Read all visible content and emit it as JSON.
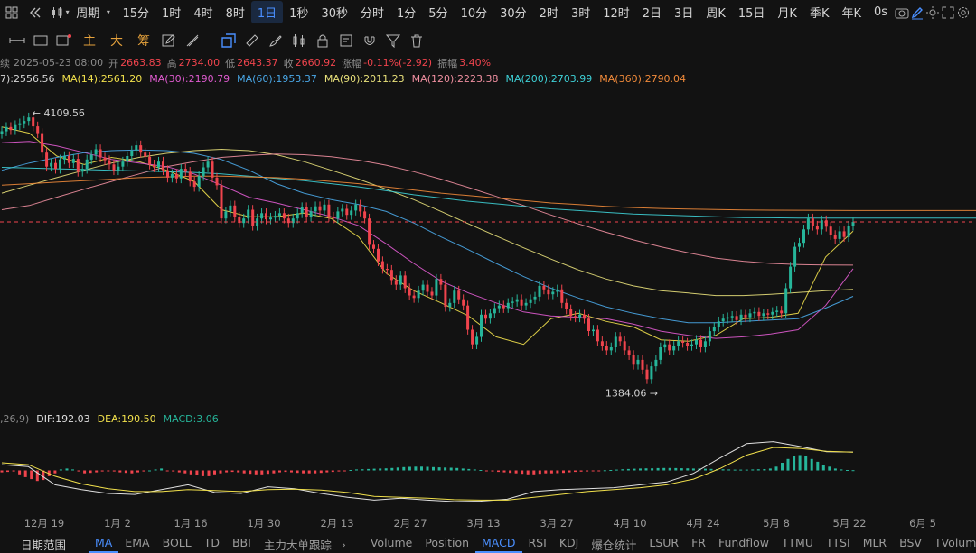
{
  "timebar": {
    "items": [
      "15分",
      "1时",
      "4时",
      "8时",
      "1日",
      "1秒",
      "30秒",
      "分时",
      "1分",
      "5分",
      "10分",
      "30分",
      "2时",
      "3时",
      "12时",
      "2日",
      "3日",
      "周K",
      "15日",
      "月K",
      "季K",
      "年K"
    ],
    "active_index": 4,
    "period_label": "周期",
    "countdown": "0s"
  },
  "toolbar": {
    "modes": [
      "主",
      "大",
      "筹"
    ]
  },
  "infobar": {
    "prefix": "续",
    "date": "2025-05-23 08:00",
    "open_label": "开",
    "open": "2663.83",
    "high_label": "高",
    "high": "2734.00",
    "low_label": "低",
    "low": "2643.37",
    "close_label": "收",
    "close": "2660.92",
    "change_label": "涨幅",
    "change": "-0.11%(-2.92)",
    "amp_label": "振幅",
    "amp": "3.40%"
  },
  "ma_legend": [
    {
      "text": "7):2556.56",
      "color": "#d8d8d8"
    },
    {
      "text": "MA(14):2561.20",
      "color": "#f1e04c"
    },
    {
      "text": "MA(30):2190.79",
      "color": "#e05bd0"
    },
    {
      "text": "MA(60):1953.37",
      "color": "#4aa8e8"
    },
    {
      "text": "MA(90):2011.23",
      "color": "#e8e07a"
    },
    {
      "text": "MA(120):2223.38",
      "color": "#f08fa0"
    },
    {
      "text": "MA(200):2703.99",
      "color": "#3ed0d6"
    },
    {
      "text": "MA(360):2790.04",
      "color": "#f08a3a"
    }
  ],
  "annotations": {
    "high": "4109.56",
    "low": "1384.06"
  },
  "macd_legend": {
    "params": ",26,9)",
    "dif": "DIF:192.03",
    "dea": "DEA:190.50",
    "macd": "MACD:3.06"
  },
  "x_labels": [
    "12月 19",
    "1月 2",
    "1月 16",
    "1月 30",
    "2月 13",
    "2月 27",
    "3月 13",
    "3月 27",
    "4月 10",
    "4月 24",
    "5月 8",
    "5月 22",
    "6月 5"
  ],
  "bottom": {
    "left": [
      "日期范围",
      "MA",
      "EMA",
      "BOLL",
      "TD",
      "BBI",
      "主力大单跟踪"
    ],
    "left_active": 1,
    "right": [
      "Volume",
      "Position",
      "MACD",
      "RSI",
      "KDJ",
      "爆仓统计",
      "LSUR",
      "FR",
      "Fundflow",
      "TTMU",
      "TTSI",
      "MLR",
      "BSV",
      "TVolume"
    ],
    "right_active": 2
  },
  "colors": {
    "up": "#26b59a",
    "down": "#f0444d",
    "accent": "#4a8fff",
    "bg": "#121212"
  },
  "chart_data": {
    "type": "candlestick",
    "x_unit": "day",
    "start_date": "2024-12-14",
    "y_axis": {
      "scale": "log",
      "min": 1300,
      "max": 4400
    },
    "closes": [
      3880,
      3950,
      3900,
      3980,
      4010,
      4050,
      4109.56,
      3960,
      3850,
      3550,
      3350,
      3400,
      3320,
      3450,
      3500,
      3400,
      3460,
      3280,
      3320,
      3450,
      3520,
      3600,
      3480,
      3440,
      3380,
      3300,
      3350,
      3420,
      3500,
      3580,
      3660,
      3550,
      3490,
      3380,
      3340,
      3420,
      3300,
      3200,
      3250,
      3190,
      3320,
      3280,
      3150,
      3080,
      3220,
      3340,
      3420,
      3200,
      3100,
      2700,
      2780,
      2850,
      2720,
      2650,
      2700,
      2800,
      2620,
      2700,
      2760,
      2690,
      2710,
      2730,
      2760,
      2700,
      2650,
      2700,
      2760,
      2830,
      2720,
      2780,
      2840,
      2790,
      2860,
      2720,
      2700,
      2780,
      2810,
      2740,
      2790,
      2860,
      2780,
      2700,
      2420,
      2380,
      2260,
      2190,
      2180,
      2090,
      2050,
      2130,
      2020,
      1960,
      1940,
      2000,
      2050,
      1990,
      1960,
      2100,
      2050,
      1870,
      1900,
      2000,
      1930,
      1880,
      1700,
      1600,
      1650,
      1810,
      1780,
      1820,
      1860,
      1880,
      1860,
      1900,
      1910,
      1930,
      1880,
      1900,
      1930,
      1950,
      2040,
      2010,
      1970,
      1990,
      2010,
      1900,
      1850,
      1800,
      1790,
      1810,
      1780,
      1690,
      1700,
      1620,
      1590,
      1560,
      1580,
      1650,
      1620,
      1560,
      1530,
      1470,
      1500,
      1440,
      1384.06,
      1460,
      1500,
      1580,
      1600,
      1560,
      1590,
      1620,
      1610,
      1590,
      1600,
      1630,
      1580,
      1620,
      1690,
      1720,
      1760,
      1780,
      1790,
      1800,
      1770,
      1810,
      1790,
      1820,
      1830,
      1800,
      1820,
      1810,
      1830,
      1840,
      1820,
      2020,
      2210,
      2400,
      2440,
      2580,
      2700,
      2620,
      2580,
      2680,
      2610,
      2520,
      2480,
      2560,
      2500,
      2620,
      2660.92
    ],
    "ma_series": [
      {
        "name": "MA(14)",
        "color": "#f1e04c",
        "y": [
          3950,
          3850,
          3500,
          3380,
          3480,
          3420,
          3300,
          3150,
          2800,
          2720,
          2720,
          2760,
          2700,
          2500,
          2150,
          2000,
          1900,
          1800,
          1650,
          1600,
          1780,
          1820,
          1760,
          1720,
          1630,
          1620,
          1660,
          1780,
          1790,
          1820,
          2300,
          2561.2
        ]
      },
      {
        "name": "MA(30)",
        "color": "#e05bd0",
        "y": [
          3700,
          3720,
          3650,
          3550,
          3450,
          3400,
          3350,
          3250,
          3100,
          2950,
          2880,
          2800,
          2720,
          2620,
          2430,
          2240,
          2080,
          1980,
          1900,
          1830,
          1800,
          1790,
          1780,
          1740,
          1690,
          1660,
          1640,
          1650,
          1670,
          1700,
          1880,
          2190.79
        ]
      },
      {
        "name": "MA(60)",
        "color": "#4aa8e8",
        "y": [
          3300,
          3400,
          3480,
          3550,
          3580,
          3590,
          3580,
          3540,
          3450,
          3300,
          3120,
          3000,
          2920,
          2860,
          2780,
          2650,
          2500,
          2370,
          2240,
          2120,
          2020,
          1940,
          1870,
          1820,
          1780,
          1750,
          1750,
          1760,
          1770,
          1780,
          1860,
          1953.37
        ]
      },
      {
        "name": "MA(90)",
        "color": "#e8e07a",
        "y": [
          3000,
          3100,
          3200,
          3300,
          3400,
          3480,
          3540,
          3580,
          3600,
          3580,
          3520,
          3420,
          3300,
          3180,
          3050,
          2920,
          2780,
          2640,
          2510,
          2390,
          2280,
          2180,
          2100,
          2040,
          2000,
          1980,
          1960,
          1960,
          1970,
          1985,
          2000,
          2011.23
        ]
      },
      {
        "name": "MA(120)",
        "color": "#f08fa0",
        "y": [
          2800,
          2850,
          2950,
          3050,
          3150,
          3250,
          3350,
          3420,
          3480,
          3510,
          3530,
          3520,
          3490,
          3440,
          3370,
          3280,
          3180,
          3070,
          2960,
          2850,
          2740,
          2640,
          2550,
          2470,
          2400,
          2340,
          2290,
          2260,
          2240,
          2230,
          2225,
          2223.38
        ]
      },
      {
        "name": "MA(200)",
        "color": "#3ed0d6",
        "y": [
          3340,
          3330,
          3320,
          3310,
          3300,
          3290,
          3280,
          3270,
          3250,
          3220,
          3190,
          3160,
          3120,
          3080,
          3030,
          2980,
          2940,
          2900,
          2870,
          2840,
          2810,
          2790,
          2770,
          2750,
          2740,
          2730,
          2720,
          2710,
          2708,
          2705,
          2704,
          2703.99
        ]
      },
      {
        "name": "MA(360)",
        "color": "#f08a3a",
        "y": [
          3100,
          3120,
          3140,
          3160,
          3180,
          3200,
          3210,
          3220,
          3220,
          3210,
          3200,
          3180,
          3150,
          3120,
          3080,
          3040,
          3000,
          2970,
          2940,
          2910,
          2880,
          2860,
          2840,
          2825,
          2815,
          2808,
          2802,
          2798,
          2795,
          2793,
          2791,
          2790.04
        ]
      }
    ],
    "macd": {
      "y_range": [
        -400,
        400
      ],
      "dif": [
        60,
        40,
        -150,
        -200,
        -240,
        -250,
        -200,
        -150,
        -230,
        -240,
        -170,
        -190,
        -240,
        -280,
        -310,
        -290,
        -310,
        -325,
        -320,
        -300,
        -220,
        -200,
        -190,
        -180,
        -150,
        -120,
        -30,
        130,
        280,
        300,
        250,
        195,
        192.03
      ],
      "dea": [
        80,
        60,
        -60,
        -140,
        -190,
        -220,
        -220,
        -200,
        -210,
        -220,
        -200,
        -195,
        -205,
        -230,
        -270,
        -280,
        -290,
        -305,
        -310,
        -310,
        -280,
        -250,
        -220,
        -200,
        -180,
        -150,
        -90,
        20,
        160,
        240,
        230,
        200,
        190.5
      ],
      "hist": [
        -20,
        -15,
        -10,
        -40,
        -70,
        -90,
        -110,
        -100,
        -60,
        -30,
        10,
        20,
        10,
        -10,
        -30,
        -25,
        -20,
        -10,
        -5,
        -10,
        -20,
        -25,
        -30,
        -20,
        -10,
        0,
        10,
        20,
        -5,
        -10,
        -20,
        -30,
        -40,
        -50,
        -60,
        -60,
        -40,
        -30,
        -20,
        -15,
        -20,
        -30,
        -35,
        -40,
        -40,
        -35,
        -30,
        -20,
        -15,
        -20,
        -25,
        -30,
        -30,
        -30,
        -25,
        -20,
        -15,
        -10,
        -5,
        5,
        10,
        12,
        15,
        18,
        20,
        22,
        25,
        30,
        35,
        38,
        40,
        40,
        38,
        35,
        32,
        30,
        28,
        25,
        20,
        15,
        10,
        5,
        -5,
        -10,
        -15,
        -20,
        -25,
        -30,
        -35,
        -40,
        -40,
        -35,
        -30,
        -30,
        -28,
        -25,
        -20,
        -15,
        -12,
        -10,
        -8,
        -5,
        2,
        5,
        8,
        12,
        15,
        18,
        20,
        22,
        22,
        24,
        25,
        25,
        24,
        23,
        22,
        20,
        20,
        18,
        16,
        14,
        12,
        10,
        8,
        8,
        8,
        10,
        12,
        14,
        20,
        40,
        80,
        120,
        150,
        160,
        150,
        120,
        90,
        60,
        40,
        20,
        10,
        5,
        3.06
      ]
    }
  }
}
